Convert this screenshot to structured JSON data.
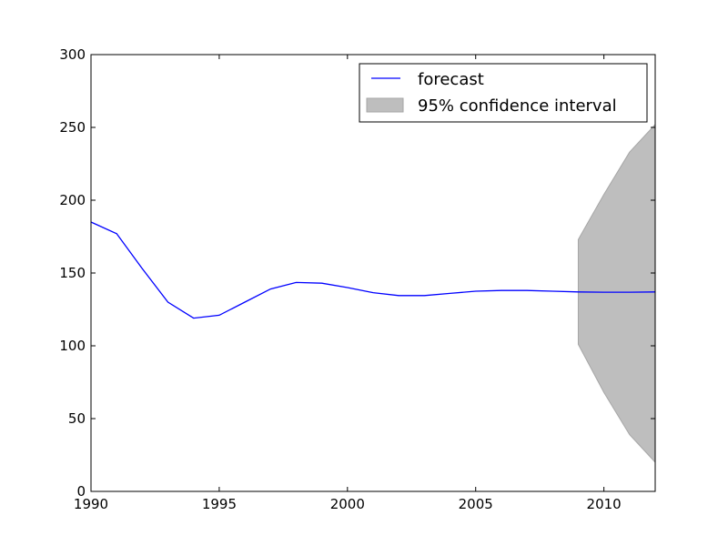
{
  "chart_data": {
    "type": "line",
    "title": "",
    "xlabel": "",
    "ylabel": "",
    "xlim": [
      1990,
      2012
    ],
    "ylim": [
      0,
      300
    ],
    "xticks": [
      1990,
      1995,
      2000,
      2005,
      2010
    ],
    "yticks": [
      0,
      50,
      100,
      150,
      200,
      250,
      300
    ],
    "grid": false,
    "legend_position": "upper-right",
    "series": [
      {
        "name": "forecast",
        "color": "#0000ff",
        "x": [
          1990,
          1991,
          1992,
          1993,
          1994,
          1995,
          1996,
          1997,
          1998,
          1999,
          2000,
          2001,
          2002,
          2003,
          2004,
          2005,
          2006,
          2007,
          2008,
          2009,
          2010,
          2011,
          2012
        ],
        "y": [
          185,
          177,
          153,
          130,
          119,
          121,
          130,
          139,
          143.5,
          143,
          140,
          136.5,
          134.5,
          134.5,
          136,
          137.5,
          138,
          138,
          137.5,
          137,
          136.8,
          136.8,
          137
        ]
      }
    ],
    "confidence_interval": {
      "name": "95% confidence interval",
      "color": "#bebebe",
      "x": [
        2009,
        2010,
        2011,
        2012
      ],
      "lower": [
        101,
        68,
        39,
        20
      ],
      "upper": [
        173,
        204,
        233,
        252
      ]
    }
  }
}
